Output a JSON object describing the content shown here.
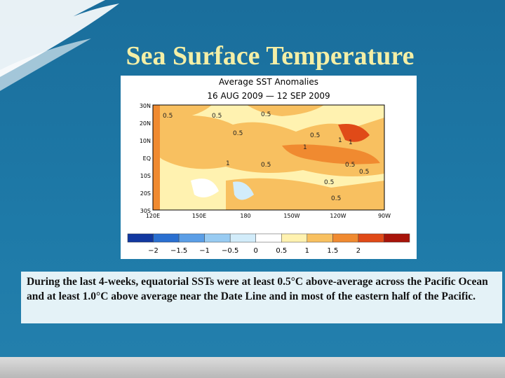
{
  "title": "Sea Surface Temperature",
  "map": {
    "title": "Average SST Anomalies",
    "period": "16 AUG 2009 — 12 SEP 2009",
    "lat_labels": [
      "30N",
      "20N",
      "10N",
      "EQ",
      "10S",
      "20S",
      "30S"
    ],
    "lon_labels": [
      "120E",
      "150E",
      "180",
      "150W",
      "120W",
      "90W"
    ],
    "contour_labels": [
      "0.5",
      "0.5",
      "0.5",
      "0.5",
      "1",
      "0.5",
      "1",
      "1",
      "0.5",
      "1",
      "0.5",
      "0.5",
      "0.5",
      "0.5"
    ]
  },
  "colorbar": {
    "labels": [
      "−2",
      "−1.5",
      "−1",
      "−0.5",
      "0",
      "0.5",
      "1",
      "1.5",
      "2"
    ],
    "colors": [
      "#1238a0",
      "#2a6fd0",
      "#5b9ee6",
      "#98cbf2",
      "#d2ecfa",
      "#ffffff",
      "#fff2b0",
      "#f8c060",
      "#f08a30",
      "#e04a18",
      "#a8140a"
    ]
  },
  "body": "During the last 4-weeks, equatorial SSTs were at least 0.5°C above-average across the Pacific Ocean and at least 1.0°C above average near the Date Line and in most of the eastern half of the Pacific."
}
